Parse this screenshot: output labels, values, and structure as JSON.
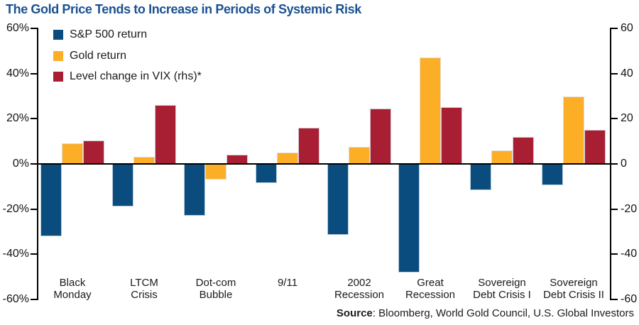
{
  "title": "The Gold Price Tends to Increase in Periods of Systemic Risk",
  "source": {
    "label": "Source",
    "text": ": Bloomberg, World Gold Council, U.S. Global Investors"
  },
  "colors": {
    "title": "#1A5191",
    "sp500": "#0B4C7E",
    "gold": "#FCAE27",
    "vix": "#A81E33",
    "axis": "#000000",
    "background": "#FFFFFF"
  },
  "chart_data": {
    "type": "bar",
    "title": "The Gold Price Tends to Increase in Periods of Systemic Risk",
    "categories": [
      "Black\nMonday",
      "LTCM\nCrisis",
      "Dot-com\nBubble",
      "9/11",
      "2002\nRecession",
      "Great\nRecession",
      "Sovereign\nDebt Crisis I",
      "Sovereign\nDebt Crisis II"
    ],
    "series": [
      {
        "key": "sp500-return",
        "name": "S&P 500 return",
        "axis": "left",
        "color": "#0B4C7E",
        "values": [
          -32,
          -19,
          -23,
          -8.5,
          -31.5,
          -48,
          -11.5,
          -9.5
        ]
      },
      {
        "key": "gold-return",
        "name": "Gold return",
        "axis": "left",
        "color": "#FCAE27",
        "values": [
          9,
          3,
          -7,
          5,
          7.5,
          47,
          6,
          30
        ]
      },
      {
        "key": "vix-level-change",
        "name": "Level change in VIX (rhs)*",
        "axis": "right",
        "color": "#A81E33",
        "values": [
          10.5,
          26,
          4,
          16,
          24.5,
          25,
          12,
          15
        ]
      }
    ],
    "left_axis": {
      "ticks": [
        "60%",
        "40%",
        "20%",
        "0%",
        "-20%",
        "-40%",
        "-60%"
      ],
      "tick_values": [
        60,
        40,
        20,
        0,
        -20,
        -40,
        -60
      ],
      "range": [
        -60,
        60
      ]
    },
    "right_axis": {
      "ticks": [
        "60",
        "40",
        "20",
        "0",
        "-20",
        "-40",
        "-60"
      ],
      "tick_values": [
        60,
        40,
        20,
        0,
        -20,
        -40,
        -60
      ],
      "range": [
        -60,
        60
      ]
    },
    "grid": false,
    "legend_position": "top-left-inside",
    "xlabel": "",
    "ylabel": ""
  }
}
